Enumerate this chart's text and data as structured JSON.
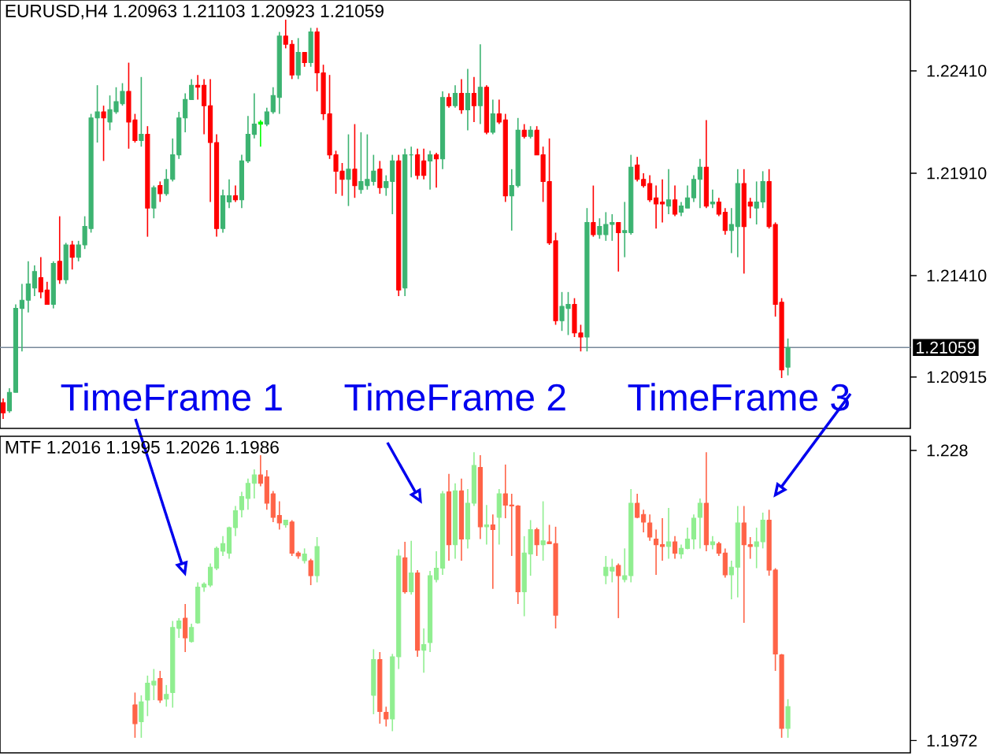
{
  "chart_data": [
    {
      "type": "candlestick",
      "title": "EURUSD,H4 1.20963 1.21103 1.20923 1.21059",
      "categories": [
        null,
        null,
        null,
        null,
        null,
        null,
        null,
        null,
        null,
        null,
        null,
        null,
        null,
        null,
        null,
        null,
        null,
        null,
        null,
        null,
        null,
        null,
        null,
        null,
        null,
        null,
        null,
        null,
        null,
        null,
        null,
        null,
        null,
        null,
        null,
        null,
        null,
        null,
        null,
        null,
        null,
        null,
        null,
        null,
        null,
        null,
        null,
        null,
        null,
        null,
        null,
        null,
        null,
        null,
        null,
        null,
        null,
        null,
        null,
        null,
        null,
        null,
        null,
        null,
        null,
        null,
        null,
        null,
        null,
        null,
        null,
        null,
        null,
        null,
        null,
        null,
        null,
        null,
        null,
        null,
        null,
        null,
        null,
        null,
        null,
        null,
        null,
        null,
        null,
        null,
        null,
        null,
        null,
        null,
        null,
        null,
        null,
        null,
        null,
        null,
        null,
        null,
        null,
        null,
        null,
        null,
        null,
        null,
        null,
        null,
        null,
        null,
        null,
        null,
        null,
        null,
        null,
        null,
        null,
        null,
        null,
        null,
        null,
        null,
        null,
        null,
        null,
        null,
        null,
        null,
        null,
        null,
        null,
        null,
        null,
        null,
        null,
        null,
        null,
        null,
        null,
        null,
        null,
        null,
        null
      ],
      "ohlc": [
        [
          1.2079,
          1.2081,
          1.2071,
          1.2074
        ],
        [
          1.2075,
          1.2086,
          1.2074,
          1.2084
        ],
        [
          1.2084,
          1.2127,
          1.2084,
          1.2125
        ],
        [
          1.2125,
          1.2137,
          1.2104,
          1.2129
        ],
        [
          1.2129,
          1.2148,
          1.2123,
          1.2137
        ],
        [
          1.2135,
          1.2146,
          1.2131,
          1.2143
        ],
        [
          1.214,
          1.215,
          1.213,
          1.2133
        ],
        [
          1.2134,
          1.2138,
          1.2127,
          1.2127
        ],
        [
          1.2127,
          1.2148,
          1.2125,
          1.2147
        ],
        [
          1.2148,
          1.217,
          1.2137,
          1.2139
        ],
        [
          1.2139,
          1.2157,
          1.2137,
          1.2156
        ],
        [
          1.2156,
          1.2158,
          1.2144,
          1.215
        ],
        [
          1.215,
          1.2158,
          1.2148,
          1.2156
        ],
        [
          1.2156,
          1.217,
          1.2154,
          1.2165
        ],
        [
          1.2164,
          1.222,
          1.2162,
          1.2218
        ],
        [
          1.2218,
          1.2234,
          1.2206,
          1.2221
        ],
        [
          1.2221,
          1.2224,
          1.2197,
          1.2218
        ],
        [
          1.2216,
          1.2229,
          1.2212,
          1.2222
        ],
        [
          1.2221,
          1.2233,
          1.222,
          1.2226
        ],
        [
          1.2225,
          1.2235,
          1.2224,
          1.2231
        ],
        [
          1.2231,
          1.2245,
          1.2203,
          1.2216
        ],
        [
          1.2217,
          1.222,
          1.2206,
          1.2207
        ],
        [
          1.2207,
          1.2238,
          1.2204,
          1.221
        ],
        [
          1.221,
          1.2214,
          1.216,
          1.2174
        ],
        [
          1.2174,
          1.2185,
          1.2169,
          1.2184
        ],
        [
          1.2185,
          1.2187,
          1.2177,
          1.2181
        ],
        [
          1.2181,
          1.2193,
          1.218,
          1.2188
        ],
        [
          1.2188,
          1.2208,
          1.2187,
          1.22
        ],
        [
          1.22,
          1.2221,
          1.2198,
          1.2218
        ],
        [
          1.2218,
          1.223,
          1.2211,
          1.2227
        ],
        [
          1.2227,
          1.2237,
          1.2227,
          1.2234
        ],
        [
          1.2234,
          1.2239,
          1.2227,
          1.2233
        ],
        [
          1.2234,
          1.2237,
          1.221,
          1.2224
        ],
        [
          1.2224,
          1.2237,
          1.2177,
          1.2206
        ],
        [
          1.2206,
          1.221,
          1.216,
          1.2164
        ],
        [
          1.2164,
          1.2183,
          1.2162,
          1.218
        ],
        [
          1.2177,
          1.2188,
          1.2174,
          1.218
        ],
        [
          1.218,
          1.2185,
          1.2177,
          1.2178
        ],
        [
          1.2178,
          1.22,
          1.2174,
          1.2197
        ],
        [
          1.2197,
          1.2219,
          1.2196,
          1.221
        ],
        [
          1.221,
          1.223,
          1.2208,
          1.2215
        ],
        [
          1.2215,
          1.2217,
          1.2204,
          1.2216
        ],
        [
          1.2215,
          1.2223,
          1.2214,
          1.2221
        ],
        [
          1.2221,
          1.2233,
          1.222,
          1.2229
        ],
        [
          1.2228,
          1.226,
          1.222,
          1.2258
        ],
        [
          1.2258,
          1.2266,
          1.2252,
          1.2254
        ],
        [
          1.2254,
          1.2256,
          1.2237,
          1.2239
        ],
        [
          1.2239,
          1.2257,
          1.2237,
          1.225
        ],
        [
          1.225,
          1.225,
          1.2243,
          1.2245
        ],
        [
          1.2245,
          1.2262,
          1.2243,
          1.226
        ],
        [
          1.226,
          1.2262,
          1.2231,
          1.224
        ],
        [
          1.224,
          1.2244,
          1.2217,
          1.222
        ],
        [
          1.222,
          1.2239,
          1.2198,
          1.22
        ],
        [
          1.22,
          1.2202,
          1.2181,
          1.2192
        ],
        [
          1.2192,
          1.2196,
          1.218,
          1.2188
        ],
        [
          1.2188,
          1.221,
          1.2175,
          1.2193
        ],
        [
          1.2193,
          1.2215,
          1.2179,
          1.2185
        ],
        [
          1.2183,
          1.2211,
          1.2181,
          1.2187
        ],
        [
          1.2185,
          1.221,
          1.2183,
          1.2188
        ],
        [
          1.2187,
          1.22,
          1.2185,
          1.2192
        ],
        [
          1.2193,
          1.2197,
          1.2181,
          1.2184
        ],
        [
          1.2184,
          1.219,
          1.218,
          1.2187
        ],
        [
          1.2187,
          1.22,
          1.2171,
          1.2197
        ],
        [
          1.2197,
          1.22,
          1.2131,
          1.2134
        ],
        [
          1.2135,
          1.2203,
          1.2131,
          1.22
        ],
        [
          1.22,
          1.2204,
          1.2189,
          1.22
        ],
        [
          1.22,
          1.2203,
          1.2188,
          1.219
        ],
        [
          1.2197,
          1.2203,
          1.2188,
          1.219
        ],
        [
          1.2197,
          1.2202,
          1.2183,
          1.22
        ],
        [
          1.22,
          1.2201,
          1.2184,
          1.2198
        ],
        [
          1.2198,
          1.2231,
          1.2193,
          1.2228
        ],
        [
          1.2228,
          1.223,
          1.2223,
          1.2224
        ],
        [
          1.2224,
          1.2234,
          1.2223,
          1.223
        ],
        [
          1.223,
          1.2237,
          1.222,
          1.2222
        ],
        [
          1.2222,
          1.2242,
          1.2212,
          1.223
        ],
        [
          1.223,
          1.2238,
          1.2216,
          1.2224
        ],
        [
          1.2224,
          1.2254,
          1.2215,
          1.2233
        ],
        [
          1.2233,
          1.2234,
          1.221,
          1.2211
        ],
        [
          1.2211,
          1.2227,
          1.221,
          1.222
        ],
        [
          1.222,
          1.2227,
          1.2215,
          1.2216
        ],
        [
          1.2217,
          1.222,
          1.2177,
          1.218
        ],
        [
          1.218,
          1.2193,
          1.2163,
          1.2185
        ],
        [
          1.2185,
          1.2218,
          1.2184,
          1.2212
        ],
        [
          1.2212,
          1.2215,
          1.2208,
          1.2209
        ],
        [
          1.2209,
          1.2214,
          1.2208,
          1.2212
        ],
        [
          1.2212,
          1.2214,
          1.22,
          1.22
        ],
        [
          1.22,
          1.2204,
          1.2177,
          1.2187
        ],
        [
          1.2187,
          1.2208,
          1.2156,
          1.2157
        ],
        [
          1.2158,
          1.2162,
          1.2117,
          1.2119
        ],
        [
          1.2119,
          1.2133,
          1.2114,
          1.2126
        ],
        [
          1.2125,
          1.2133,
          1.2112,
          1.2127
        ],
        [
          1.2127,
          1.213,
          1.2111,
          1.2113
        ],
        [
          1.2113,
          1.2117,
          1.2104,
          1.2111
        ],
        [
          1.2111,
          1.2174,
          1.2104,
          1.2167
        ],
        [
          1.2167,
          1.2185,
          1.216,
          1.2161
        ],
        [
          1.2161,
          1.2169,
          1.2159,
          1.2165
        ],
        [
          1.2161,
          1.2172,
          1.2158,
          1.2166
        ],
        [
          1.2166,
          1.2171,
          1.2158,
          1.2167
        ],
        [
          1.2167,
          1.2167,
          1.2143,
          1.2162
        ],
        [
          1.2162,
          1.2177,
          1.215,
          1.2163
        ],
        [
          1.2162,
          1.22,
          1.2161,
          1.2194
        ],
        [
          1.2195,
          1.2199,
          1.2187,
          1.2188
        ],
        [
          1.2188,
          1.2191,
          1.2184,
          1.2185
        ],
        [
          1.2186,
          1.219,
          1.2177,
          1.2178
        ],
        [
          1.2179,
          1.2185,
          1.2164,
          1.2176
        ],
        [
          1.2177,
          1.2188,
          1.2167,
          1.2176
        ],
        [
          1.2175,
          1.2193,
          1.2171,
          1.2178
        ],
        [
          1.2178,
          1.2185,
          1.217,
          1.2171
        ],
        [
          1.2172,
          1.2177,
          1.217,
          1.2175
        ],
        [
          1.2174,
          1.2185,
          1.2174,
          1.2179
        ],
        [
          1.2179,
          1.219,
          1.2177,
          1.2188
        ],
        [
          1.2188,
          1.2198,
          1.2174,
          1.2194
        ],
        [
          1.2194,
          1.2217,
          1.2174,
          1.2175
        ],
        [
          1.2176,
          1.2183,
          1.2174,
          1.2177
        ],
        [
          1.2177,
          1.2179,
          1.217,
          1.2171
        ],
        [
          1.2172,
          1.2174,
          1.2161,
          1.2163
        ],
        [
          1.2163,
          1.2174,
          1.2152,
          1.2166
        ],
        [
          1.2165,
          1.2193,
          1.215,
          1.2186
        ],
        [
          1.2186,
          1.2193,
          1.2142,
          1.2165
        ],
        [
          1.2177,
          1.2179,
          1.2169,
          1.2175
        ],
        [
          1.2174,
          1.2187,
          1.2166,
          1.2177
        ],
        [
          1.2177,
          1.2192,
          1.2174,
          1.2187
        ],
        [
          1.2187,
          1.2193,
          1.2164,
          1.2165
        ],
        [
          1.2166,
          1.2167,
          1.2121,
          1.2127
        ],
        [
          1.2128,
          1.213,
          1.2091,
          1.2095
        ],
        [
          1.20963,
          1.21103,
          1.20923,
          1.21059
        ],
        null,
        null,
        null,
        null,
        null,
        null,
        null,
        null,
        null,
        null,
        null,
        null,
        null,
        null,
        null,
        null,
        null,
        null,
        null
      ],
      "colors": [
        "#ff0000",
        "#3cb371",
        "#3cb371",
        "#3cb371",
        "#3cb371",
        "#3cb371",
        "#ff0000",
        "#ff0000",
        "#3cb371",
        "#ff0000",
        "#3cb371",
        "#ff0000",
        "#3cb371",
        "#3cb371",
        "#3cb371",
        "#3cb371",
        "#ff0000",
        "#3cb371",
        "#3cb371",
        "#3cb371",
        "#ff0000",
        "#ff0000",
        "#3cb371",
        "#ff0000",
        "#3cb371",
        "#ff0000",
        "#3cb371",
        "#3cb371",
        "#3cb371",
        "#3cb371",
        "#3cb371",
        "#ff0000",
        "#ff0000",
        "#ff0000",
        "#ff0000",
        "#3cb371",
        "#3cb371",
        "#ff0000",
        "#3cb371",
        "#3cb371",
        "#3cb371",
        "#00ff00",
        "#3cb371",
        "#3cb371",
        "#3cb371",
        "#ff0000",
        "#ff0000",
        "#3cb371",
        "#ff0000",
        "#3cb371",
        "#ff0000",
        "#ff0000",
        "#ff0000",
        "#ff0000",
        "#ff0000",
        "#3cb371",
        "#ff0000",
        "#3cb371",
        "#3cb371",
        "#3cb371",
        "#ff0000",
        "#3cb371",
        "#3cb371",
        "#ff0000",
        "#3cb371",
        "#3cb371",
        "#ff0000",
        "#ff0000",
        "#3cb371",
        "#ff0000",
        "#3cb371",
        "#ff0000",
        "#3cb371",
        "#ff0000",
        "#3cb371",
        "#ff0000",
        "#3cb371",
        "#ff0000",
        "#3cb371",
        "#ff0000",
        "#ff0000",
        "#3cb371",
        "#3cb371",
        "#ff0000",
        "#3cb371",
        "#ff0000",
        "#ff0000",
        "#ff0000",
        "#ff0000",
        "#3cb371",
        "#3cb371",
        "#ff0000",
        "#ff0000",
        "#3cb371",
        "#ff0000",
        "#3cb371",
        "#3cb371",
        "#3cb371",
        "#ff0000",
        "#3cb371",
        "#3cb371",
        "#ff0000",
        "#ff0000",
        "#ff0000",
        "#ff0000",
        "#ff0000",
        "#3cb371",
        "#ff0000",
        "#3cb371",
        "#3cb371",
        "#3cb371",
        "#3cb371",
        "#ff0000",
        "#3cb371",
        "#ff0000",
        "#ff0000",
        "#3cb371",
        "#3cb371",
        "#ff0000",
        "#ff0000",
        "#3cb371",
        "#3cb371",
        "#ff0000",
        "#ff0000",
        "#ff0000",
        "#3cb371",
        null,
        null,
        null,
        null,
        null,
        null,
        null,
        null,
        null,
        null,
        null,
        null,
        null,
        null,
        null,
        null,
        null,
        null,
        null
      ],
      "ylim": [
        1.20664,
        1.22756
      ],
      "yticks": [
        {
          "value": 1.2241,
          "label": "1.22410"
        },
        {
          "value": 1.2191,
          "label": "1.21910"
        },
        {
          "value": 1.2141,
          "label": "1.21410"
        },
        1.20915
      ],
      "ref_lines": [
        {
          "axis": "y",
          "value": 1.21059,
          "label": "1.21059",
          "color": "#778899"
        }
      ],
      "annotations": [
        "TimeFrame 1",
        "TimeFrame 2",
        "TimeFrame 3"
      ],
      "tick_labels": "y"
    },
    {
      "type": "candlestick",
      "title": "MTF 1.2016 1.1995 1.2026 1.1986",
      "categories": [
        null,
        null,
        null,
        null,
        null,
        null,
        null,
        null,
        null,
        null,
        null,
        null,
        null,
        null,
        null,
        null,
        null,
        null,
        null,
        null,
        null,
        null,
        null,
        null,
        null,
        null,
        null,
        null,
        null,
        null,
        null,
        null,
        null,
        null,
        null,
        null,
        null,
        null,
        null,
        null,
        null,
        null,
        null,
        null,
        null,
        null,
        null,
        null,
        null,
        null,
        null,
        null,
        null,
        null,
        null,
        null,
        null,
        null,
        null,
        null,
        null,
        null,
        null,
        null,
        null,
        null,
        null,
        null,
        null,
        null,
        null,
        null,
        null,
        null,
        null,
        null,
        null,
        null,
        null,
        null,
        null,
        null,
        null,
        null,
        null,
        null,
        null,
        null,
        null,
        null,
        null,
        null,
        null,
        null,
        null,
        null,
        null,
        null,
        null,
        null,
        null,
        null,
        null,
        null,
        null,
        null,
        null,
        null,
        null,
        null,
        null,
        null,
        null,
        null,
        null,
        null,
        null,
        null,
        null,
        null,
        null,
        null,
        null,
        null,
        null,
        null,
        null,
        null,
        null,
        null,
        null,
        null,
        null,
        null,
        null,
        null,
        null,
        null,
        null,
        null,
        null,
        null,
        null,
        null,
        null
      ],
      "ohlc": [
        null,
        null,
        null,
        null,
        null,
        null,
        null,
        null,
        null,
        null,
        null,
        null,
        null,
        null,
        null,
        null,
        null,
        null,
        null,
        null,
        null,
        [
          1.201,
          1.2023,
          1.1975,
          1.199
        ],
        [
          1.1992,
          1.202,
          1.1975,
          1.2013
        ],
        [
          1.2015,
          1.2041,
          1.1998,
          1.2033
        ],
        [
          1.2031,
          1.2048,
          1.2015,
          1.2035
        ],
        [
          1.2038,
          1.2046,
          1.2012,
          1.2015
        ],
        [
          1.2016,
          1.2031,
          1.2008,
          1.2021
        ],
        [
          1.2023,
          1.2099,
          1.2007,
          1.2092
        ],
        [
          1.2091,
          1.2102,
          1.2081,
          1.2099
        ],
        [
          1.2102,
          1.2117,
          1.2066,
          1.2081
        ],
        [
          1.2077,
          1.2096,
          1.2076,
          1.2092
        ],
        [
          1.2097,
          1.214,
          1.2096,
          1.2135
        ],
        [
          1.2135,
          1.214,
          1.213,
          1.2138
        ],
        [
          1.2137,
          1.216,
          1.2135,
          1.2156
        ],
        [
          1.2155,
          1.2178,
          1.2153,
          1.2176
        ],
        [
          1.2173,
          1.2189,
          1.2168,
          1.2181
        ],
        [
          1.2171,
          1.2199,
          1.2165,
          1.2198
        ],
        [
          1.2198,
          1.2221,
          1.2189,
          1.2216
        ],
        [
          1.2217,
          1.2236,
          1.2209,
          1.2231
        ],
        [
          1.2229,
          1.225,
          1.2217,
          1.2245
        ],
        [
          1.2245,
          1.226,
          1.2229,
          1.2254
        ],
        [
          1.2254,
          1.2275,
          1.2242,
          1.2245
        ],
        [
          1.2252,
          1.2259,
          1.2217,
          1.2224
        ],
        [
          1.2234,
          1.2237,
          1.2204,
          1.2209
        ],
        [
          1.2211,
          1.2226,
          1.2196,
          1.2203
        ],
        [
          1.2201,
          1.2206,
          1.2198,
          1.2206
        ],
        [
          1.2204,
          1.2206,
          1.2168,
          1.2171
        ],
        [
          1.2171,
          1.2173,
          1.2165,
          1.2168
        ],
        [
          1.2163,
          1.2176,
          1.216,
          1.217
        ],
        [
          1.2163,
          1.2165,
          1.2137,
          1.2147
        ],
        [
          1.2147,
          1.2188,
          1.214,
          1.2178
        ],
        null,
        null,
        null,
        null,
        null,
        null,
        null,
        null,
        [
          1.202,
          1.2069,
          1.2,
          1.2058
        ],
        [
          1.2058,
          1.2066,
          1.199,
          1.2003
        ],
        [
          1.2002,
          1.2008,
          1.1987,
          1.1995
        ],
        [
          1.1995,
          1.2064,
          1.1982,
          1.2061
        ],
        [
          1.2061,
          1.2175,
          1.2048,
          1.2168
        ],
        [
          1.2166,
          1.2183,
          1.2128,
          1.213
        ],
        [
          1.213,
          1.2184,
          1.2127,
          1.215
        ],
        [
          1.215,
          1.2153,
          1.2061,
          1.2068
        ],
        [
          1.2068,
          1.2091,
          1.2044,
          1.2074
        ],
        [
          1.2076,
          1.2152,
          1.2066,
          1.2147
        ],
        [
          1.2143,
          1.2173,
          1.214,
          1.2155
        ],
        [
          1.2155,
          1.2237,
          1.2148,
          1.2234
        ],
        [
          1.2236,
          1.2255,
          1.2163,
          1.218
        ],
        [
          1.218,
          1.2245,
          1.2165,
          1.2237
        ],
        [
          1.2237,
          1.225,
          1.2163,
          1.2186
        ],
        [
          1.2186,
          1.2239,
          1.2176,
          1.2224
        ],
        [
          1.2224,
          1.2278,
          1.2221,
          1.2264
        ],
        [
          1.2262,
          1.2275,
          1.2186,
          1.2199
        ],
        [
          1.2199,
          1.2222,
          1.218,
          1.2201
        ],
        [
          1.2201,
          1.2212,
          1.2133,
          1.2196
        ],
        [
          1.2209,
          1.2239,
          1.218,
          1.2234
        ],
        [
          1.2234,
          1.2265,
          1.2208,
          1.2222
        ],
        [
          1.2222,
          1.2234,
          1.2168,
          1.2221
        ],
        [
          1.2221,
          1.2222,
          1.2117,
          1.213
        ],
        [
          1.213,
          1.2189,
          1.2104,
          1.2171
        ],
        [
          1.217,
          1.2206,
          1.2147,
          1.2196
        ],
        [
          1.2196,
          1.2198,
          1.2168,
          1.218
        ],
        [
          1.218,
          1.2226,
          1.2163,
          1.2184
        ],
        [
          1.2183,
          1.2201,
          1.2181,
          1.2181
        ],
        [
          1.2181,
          1.2199,
          1.2091,
          1.2105
        ],
        null,
        null,
        null,
        null,
        null,
        null,
        null,
        [
          1.2147,
          1.2168,
          1.2138,
          1.2156
        ],
        [
          1.2152,
          1.2165,
          1.214,
          1.2156
        ],
        [
          1.2158,
          1.216,
          1.2102,
          1.2147
        ],
        [
          1.2143,
          1.2176,
          1.214,
          1.2147
        ],
        [
          1.2147,
          1.2239,
          1.214,
          1.2224
        ],
        [
          1.2224,
          1.2234,
          1.2208,
          1.2209
        ],
        [
          1.2212,
          1.2217,
          1.2193,
          1.2204
        ],
        [
          1.2203,
          1.2212,
          1.2184,
          1.2188
        ],
        [
          1.2186,
          1.2196,
          1.2148,
          1.218
        ],
        [
          1.218,
          1.2208,
          1.2163,
          1.2178
        ],
        [
          1.2178,
          1.2219,
          1.2165,
          1.2183
        ],
        [
          1.2183,
          1.2189,
          1.2165,
          1.2171
        ],
        [
          1.217,
          1.218,
          1.2165,
          1.2176
        ],
        [
          1.2176,
          1.2198,
          1.2175,
          1.2186
        ],
        [
          1.2186,
          1.2212,
          1.2175,
          1.2208
        ],
        [
          1.2209,
          1.2229,
          1.2176,
          1.2224
        ],
        [
          1.2224,
          1.2278,
          1.2173,
          1.218
        ],
        [
          1.218,
          1.2189,
          1.2175,
          1.2183
        ],
        [
          1.2181,
          1.2183,
          1.2168,
          1.2171
        ],
        [
          1.2171,
          1.2176,
          1.2145,
          1.2148
        ],
        [
          1.2148,
          1.2163,
          1.2122,
          1.2156
        ],
        [
          1.2156,
          1.2221,
          1.2124,
          1.2203
        ],
        [
          1.2203,
          1.2221,
          1.2097,
          1.218
        ],
        [
          1.218,
          1.2188,
          1.2165,
          1.2178
        ],
        [
          1.2178,
          1.2198,
          1.2155,
          1.2183
        ],
        [
          1.2183,
          1.2214,
          1.2176,
          1.2206
        ],
        [
          1.2206,
          1.2217,
          1.2147,
          1.2153
        ],
        [
          1.2153,
          1.2155,
          1.2046,
          1.2064
        ],
        [
          1.2063,
          1.2064,
          1.1975,
          1.1985
        ],
        [
          1.1985,
          1.2016,
          1.1975,
          1.2008
        ],
        null,
        null,
        null,
        null,
        null,
        null,
        null,
        null,
        null,
        null,
        null,
        null,
        null,
        null,
        null,
        null,
        null,
        null,
        null
      ],
      "colors": [
        null,
        null,
        null,
        null,
        null,
        null,
        null,
        null,
        null,
        null,
        null,
        null,
        null,
        null,
        null,
        null,
        null,
        null,
        null,
        null,
        null,
        "#ff6347",
        "#90ee90",
        "#90ee90",
        "#90ee90",
        "#ff6347",
        "#90ee90",
        "#90ee90",
        "#90ee90",
        "#ff6347",
        "#90ee90",
        "#90ee90",
        "#90ee90",
        "#90ee90",
        "#90ee90",
        "#90ee90",
        "#90ee90",
        "#90ee90",
        "#90ee90",
        "#90ee90",
        "#90ee90",
        "#ff6347",
        "#ff6347",
        "#ff6347",
        "#ff6347",
        "#90ee90",
        "#ff6347",
        "#ff6347",
        "#90ee90",
        "#ff6347",
        "#90ee90",
        null,
        null,
        null,
        null,
        null,
        null,
        null,
        null,
        "#90ee90",
        "#ff6347",
        "#ff6347",
        "#90ee90",
        "#90ee90",
        "#ff6347",
        "#90ee90",
        "#ff6347",
        "#90ee90",
        "#90ee90",
        "#90ee90",
        "#90ee90",
        "#ff6347",
        "#90ee90",
        "#ff6347",
        "#90ee90",
        "#90ee90",
        "#ff6347",
        "#90ee90",
        "#ff6347",
        "#90ee90",
        "#ff6347",
        "#ff6347",
        "#ff6347",
        "#90ee90",
        "#90ee90",
        "#ff6347",
        "#90ee90",
        "#ff6347",
        "#ff6347",
        null,
        null,
        null,
        null,
        null,
        null,
        null,
        "#90ee90",
        "#90ee90",
        "#ff6347",
        "#90ee90",
        "#90ee90",
        "#ff6347",
        "#ff6347",
        "#ff6347",
        "#ff6347",
        "#ff6347",
        "#90ee90",
        "#ff6347",
        "#90ee90",
        "#90ee90",
        "#90ee90",
        "#90ee90",
        "#ff6347",
        "#90ee90",
        "#ff6347",
        "#ff6347",
        "#90ee90",
        "#90ee90",
        "#ff6347",
        "#ff6347",
        "#90ee90",
        "#90ee90",
        "#ff6347",
        "#ff6347",
        "#ff6347",
        "#90ee90",
        null,
        null,
        null,
        null,
        null,
        null,
        null,
        null,
        null,
        null,
        null,
        null,
        null,
        null,
        null,
        null,
        null,
        null,
        null
      ],
      "ylim": [
        1.1959,
        1.2295
      ],
      "yticks": [
        1.228,
        1.1972
      ],
      "tick_labels": "y"
    }
  ]
}
